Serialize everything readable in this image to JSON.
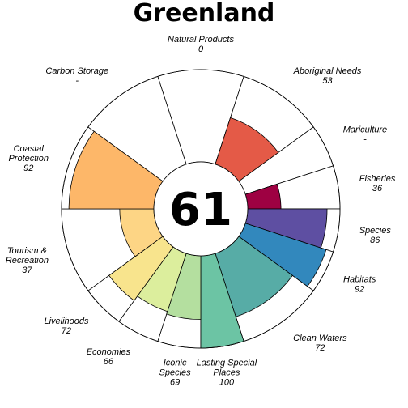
{
  "chart_data": {
    "type": "flower",
    "title": "Greenland",
    "center_score": "61",
    "petals": [
      {
        "name": "Natural Products",
        "lines": [
          "Natural Products"
        ],
        "value_text": "0",
        "value": 0,
        "weight": 1,
        "color": "#9E0142"
      },
      {
        "name": "Aboriginal Needs",
        "lines": [
          "Aboriginal Needs"
        ],
        "value_text": "53",
        "value": 53,
        "weight": 1,
        "color": "#E45A47"
      },
      {
        "name": "Mariculture",
        "lines": [
          "Mariculture"
        ],
        "value_text": "-",
        "value": null,
        "weight": 0.5,
        "color": "#FDAE61"
      },
      {
        "name": "Fisheries",
        "lines": [
          "Fisheries"
        ],
        "value_text": "36",
        "value": 36,
        "weight": 0.5,
        "color": "#9E0142"
      },
      {
        "name": "Species",
        "lines": [
          "Species"
        ],
        "value_text": "86",
        "value": 86,
        "weight": 0.5,
        "color": "#5E4FA2"
      },
      {
        "name": "Habitats",
        "lines": [
          "Habitats"
        ],
        "value_text": "92",
        "value": 92,
        "weight": 0.5,
        "color": "#3288BD"
      },
      {
        "name": "Clean Waters",
        "lines": [
          "Clean Waters"
        ],
        "value_text": "72",
        "value": 72,
        "weight": 1,
        "color": "#57ACA6"
      },
      {
        "name": "Lasting Special Places",
        "lines": [
          "Lasting Special",
          "Places"
        ],
        "value_text": "100",
        "value": 100,
        "weight": 0.5,
        "color": "#6CC4A4"
      },
      {
        "name": "Iconic Species",
        "lines": [
          "Iconic",
          "Species"
        ],
        "value_text": "69",
        "value": 69,
        "weight": 0.5,
        "color": "#B4DF9F"
      },
      {
        "name": "Economies",
        "lines": [
          "Economies"
        ],
        "value_text": "66",
        "value": 66,
        "weight": 0.5,
        "color": "#DCEE9D"
      },
      {
        "name": "Livelihoods",
        "lines": [
          "Livelihoods"
        ],
        "value_text": "72",
        "value": 72,
        "weight": 0.5,
        "color": "#F8E48D"
      },
      {
        "name": "Tourism & Recreation",
        "lines": [
          "Tourism &",
          "Recreation"
        ],
        "value_text": "37",
        "value": 37,
        "weight": 1,
        "color": "#FDD585"
      },
      {
        "name": "Coastal Protection",
        "lines": [
          "Coastal",
          "Protection"
        ],
        "value_text": "92",
        "value": 92,
        "weight": 1,
        "color": "#FDB769"
      },
      {
        "name": "Carbon Storage",
        "lines": [
          "Carbon Storage"
        ],
        "value_text": "-",
        "value": null,
        "weight": 1,
        "color": "#FDAE61"
      }
    ],
    "ylim": [
      0,
      100
    ]
  }
}
